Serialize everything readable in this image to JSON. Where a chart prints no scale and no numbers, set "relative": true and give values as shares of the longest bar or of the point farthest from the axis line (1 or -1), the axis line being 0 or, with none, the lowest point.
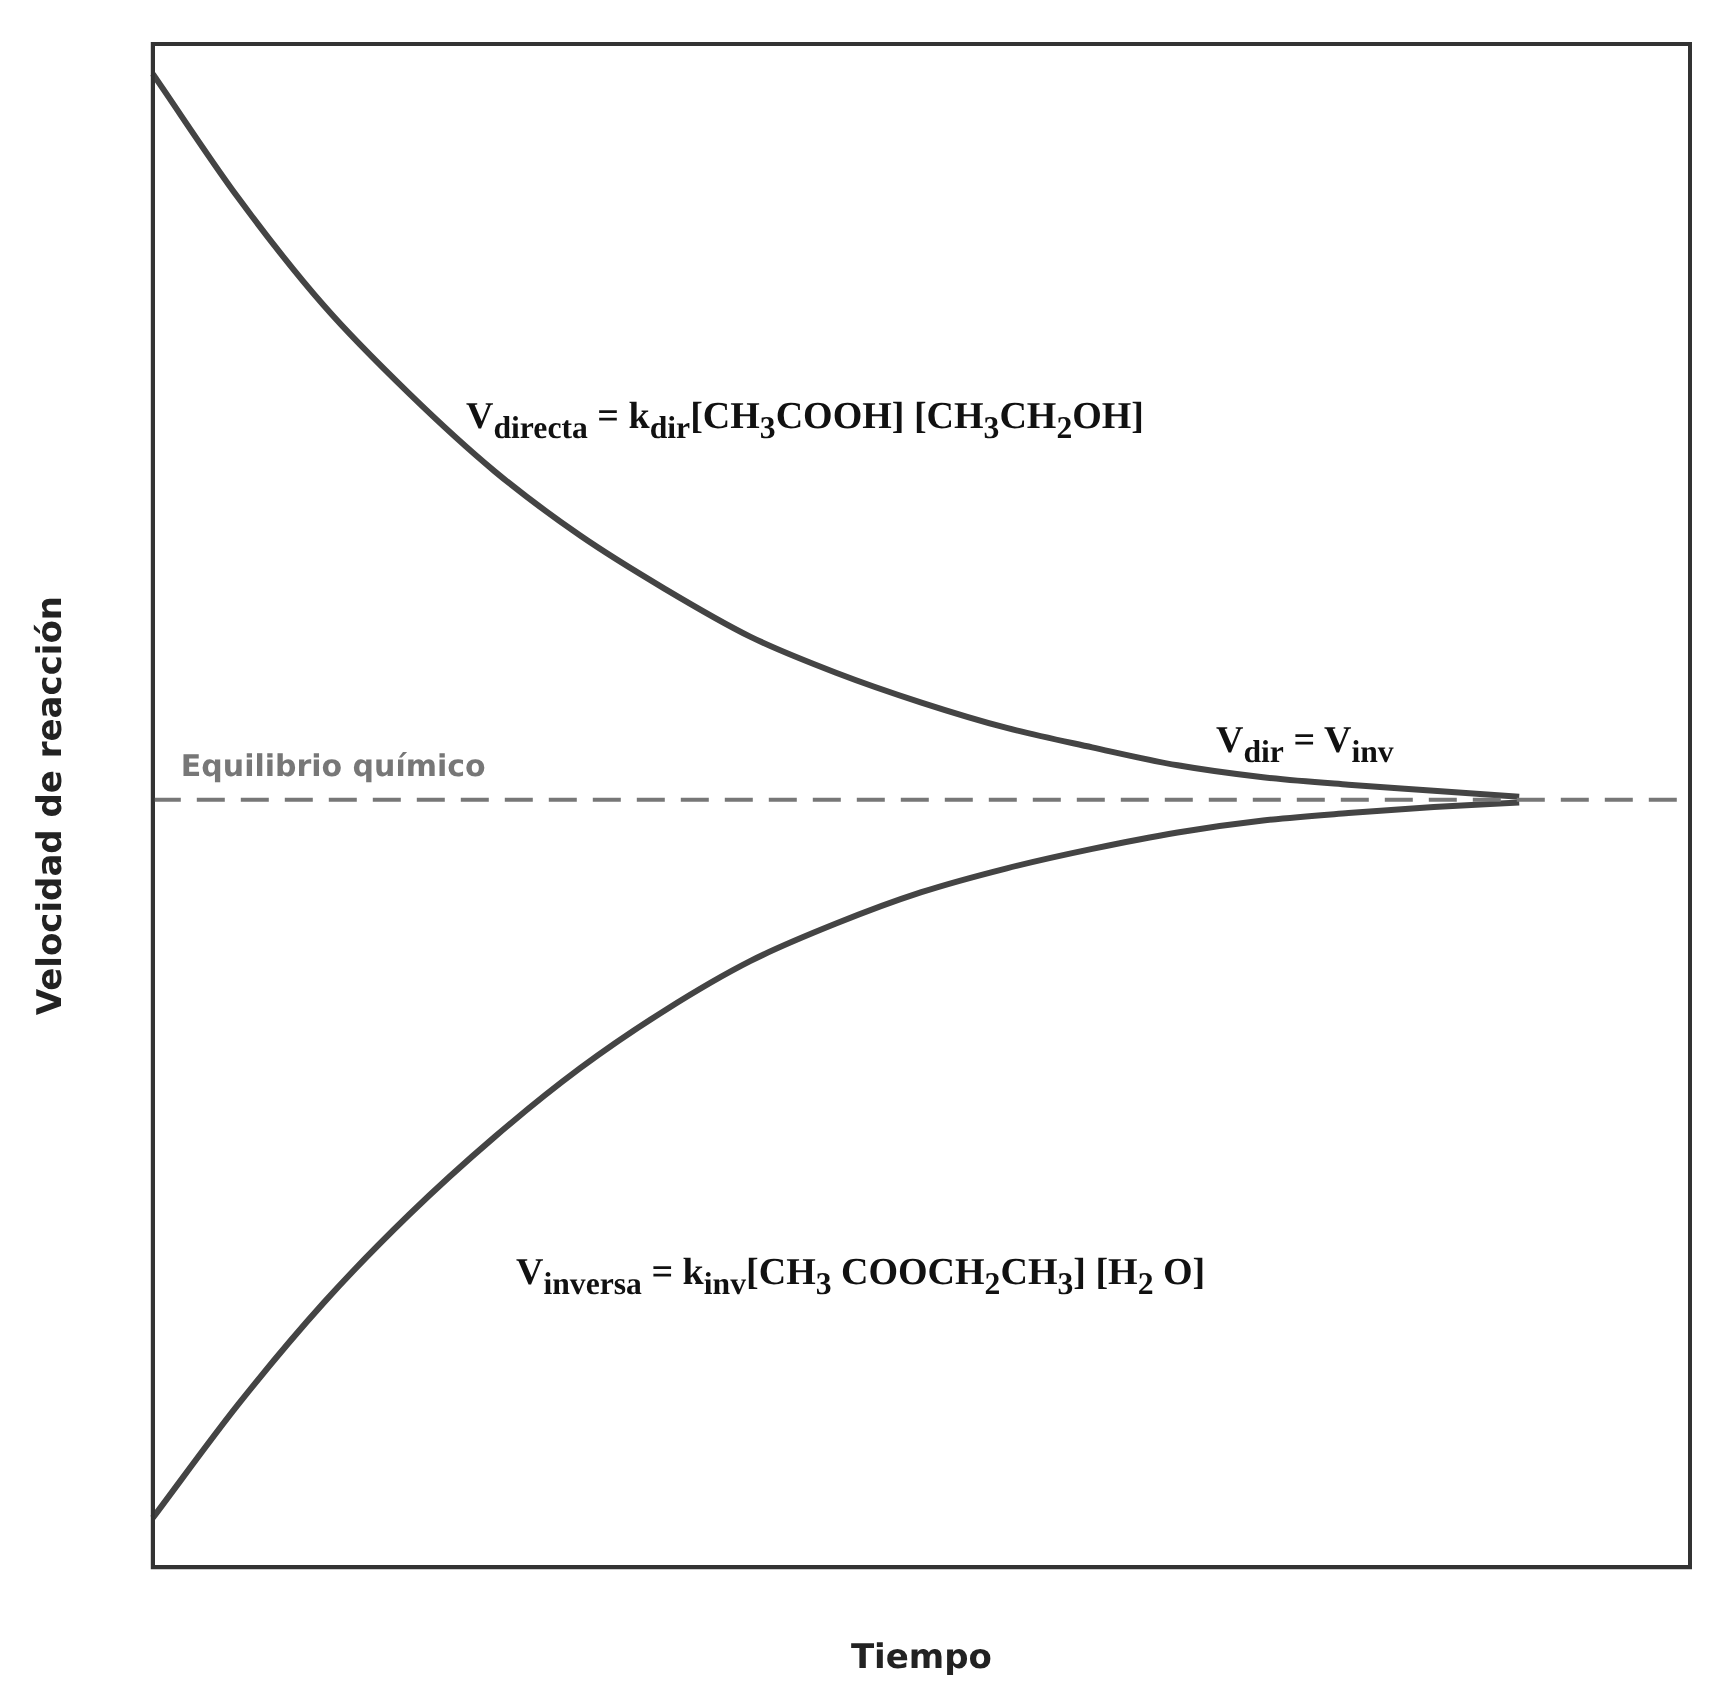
{
  "chart_data": {
    "type": "line",
    "relative": true,
    "xlabel": "Tiempo",
    "ylabel": "Velocidad de reacción",
    "categories": [
      null,
      null,
      null,
      null,
      null,
      null,
      null,
      null,
      null,
      null,
      null,
      null,
      null,
      null,
      null,
      null,
      null,
      null,
      null
    ],
    "series": [
      {
        "color": "#444444",
        "values": [
          1.0,
          0.917,
          0.845,
          0.786,
          0.734,
          0.691,
          0.655,
          0.623,
          0.599,
          0.579,
          0.562,
          0.549,
          0.537,
          0.529,
          0.524,
          0.52,
          0.516,
          null,
          null
        ]
      },
      {
        "color": "#444444",
        "values": [
          0.033,
          0.109,
          0.177,
          0.236,
          0.288,
          0.334,
          0.373,
          0.406,
          0.431,
          0.452,
          0.468,
          0.481,
          0.492,
          0.5,
          0.505,
          0.509,
          0.512,
          null,
          null
        ]
      }
    ],
    "ref_lines": [
      {
        "axis": "y",
        "value": 0.514,
        "label": "Equilibrio químico",
        "color": "#777777",
        "line_style": "dashed"
      }
    ],
    "annotations": [
      "V$_{directa}$ = k$_{dir}$[CH$_{3}$COOH] [CH$_{3}$CH$_{2}$OH]",
      "V$_{dir}$ = V$_{inv}$",
      "V$_{inversa}$ = k$_{inv}$[CH$_{3}$ COOCH$_{2}$CH$_{3}$] [H$_{2}$ O]"
    ],
    "legend": false,
    "grid": false,
    "marker": "none",
    "line_style": "solid"
  }
}
